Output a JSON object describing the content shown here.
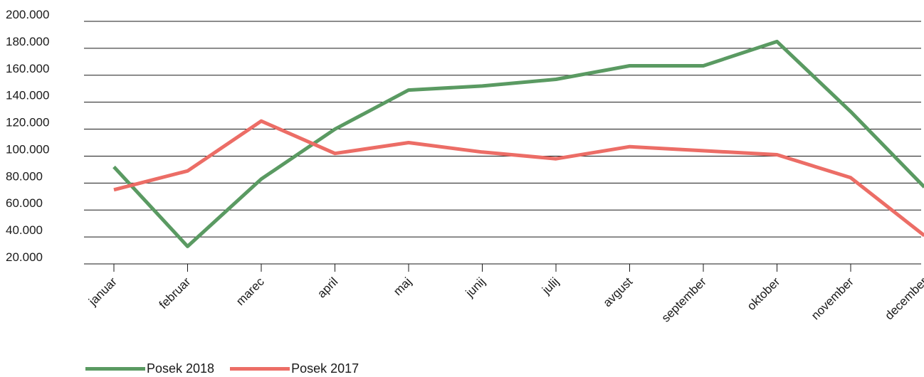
{
  "chart_data": {
    "type": "line",
    "categories": [
      "januar",
      "februar",
      "marec",
      "april",
      "maj",
      "junij",
      "julij",
      "avgust",
      "september",
      "oktober",
      "november",
      "december"
    ],
    "series": [
      {
        "name": "Posek 2018",
        "color": "#5a9a62",
        "values": [
          92000,
          33000,
          83000,
          120000,
          149000,
          152000,
          157000,
          167000,
          167000,
          185000,
          133000,
          77000
        ]
      },
      {
        "name": "Posek 2017",
        "color": "#ec6d66",
        "values": [
          75000,
          89000,
          126000,
          102000,
          110000,
          103000,
          98000,
          107000,
          104000,
          101000,
          84000,
          41000
        ]
      }
    ],
    "ylim": [
      20000,
      200000
    ],
    "yticks": [
      "20.000",
      "40.000",
      "60.000",
      "80.000",
      "100.000",
      "120.000",
      "140.000",
      "160.000",
      "180.000",
      "200.000"
    ],
    "grid": true,
    "legend_position": "bottom-left"
  }
}
